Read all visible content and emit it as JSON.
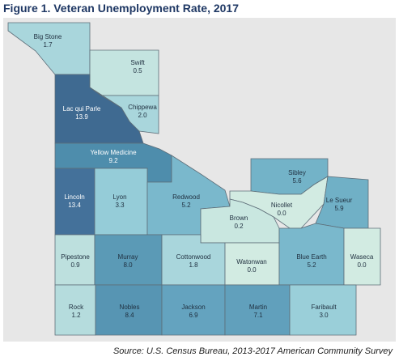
{
  "title": "Figure 1. Veteran Unemployment Rate, 2017",
  "source": "Source: U.S. Census Bureau, 2013-2017 American Community Survey",
  "colors": {
    "text_dark": "#1f2f3f",
    "text_light": "#ffffff",
    "border": "#5d6d78",
    "background": "#e7e7e7",
    "title": "#1f3864"
  },
  "counties": [
    {
      "name": "Big Stone",
      "value": "1.7",
      "fill": "#a9d6dc"
    },
    {
      "name": "Swift",
      "value": "0.5",
      "fill": "#c4e4e0"
    },
    {
      "name": "Lac qui Parle",
      "value": "13.9",
      "fill": "#3f6a91"
    },
    {
      "name": "Chippewa",
      "value": "2.0",
      "fill": "#a9d6dc"
    },
    {
      "name": "Yellow Medicine",
      "value": "9.2",
      "fill": "#4e8dac"
    },
    {
      "name": "Lincoln",
      "value": "13.4",
      "fill": "#44719a"
    },
    {
      "name": "Lyon",
      "value": "3.3",
      "fill": "#95ccd8"
    },
    {
      "name": "Redwood",
      "value": "5.2",
      "fill": "#7ab8cc"
    },
    {
      "name": "Sibley",
      "value": "5.6",
      "fill": "#73b3c8"
    },
    {
      "name": "Nicollet",
      "value": "0.0",
      "fill": "#d2ebe2"
    },
    {
      "name": "Le Sueur",
      "value": "5.9",
      "fill": "#70b0c6"
    },
    {
      "name": "Brown",
      "value": "0.2",
      "fill": "#c9e7e0"
    },
    {
      "name": "Pipestone",
      "value": "0.9",
      "fill": "#bde0de"
    },
    {
      "name": "Murray",
      "value": "8.0",
      "fill": "#5b9ab6"
    },
    {
      "name": "Cottonwood",
      "value": "1.8",
      "fill": "#a9d6dc"
    },
    {
      "name": "Watonwan",
      "value": "0.0",
      "fill": "#d2ebe2"
    },
    {
      "name": "Blue Earth",
      "value": "5.2",
      "fill": "#7ab8cc"
    },
    {
      "name": "Waseca",
      "value": "0.0",
      "fill": "#d2ebe2"
    },
    {
      "name": "Rock",
      "value": "1.2",
      "fill": "#b5dcdd"
    },
    {
      "name": "Nobles",
      "value": "8.4",
      "fill": "#5795b3"
    },
    {
      "name": "Jackson",
      "value": "6.9",
      "fill": "#64a3bf"
    },
    {
      "name": "Martin",
      "value": "7.1",
      "fill": "#61a0bc"
    },
    {
      "name": "Faribault",
      "value": "3.0",
      "fill": "#9acfd9"
    }
  ]
}
